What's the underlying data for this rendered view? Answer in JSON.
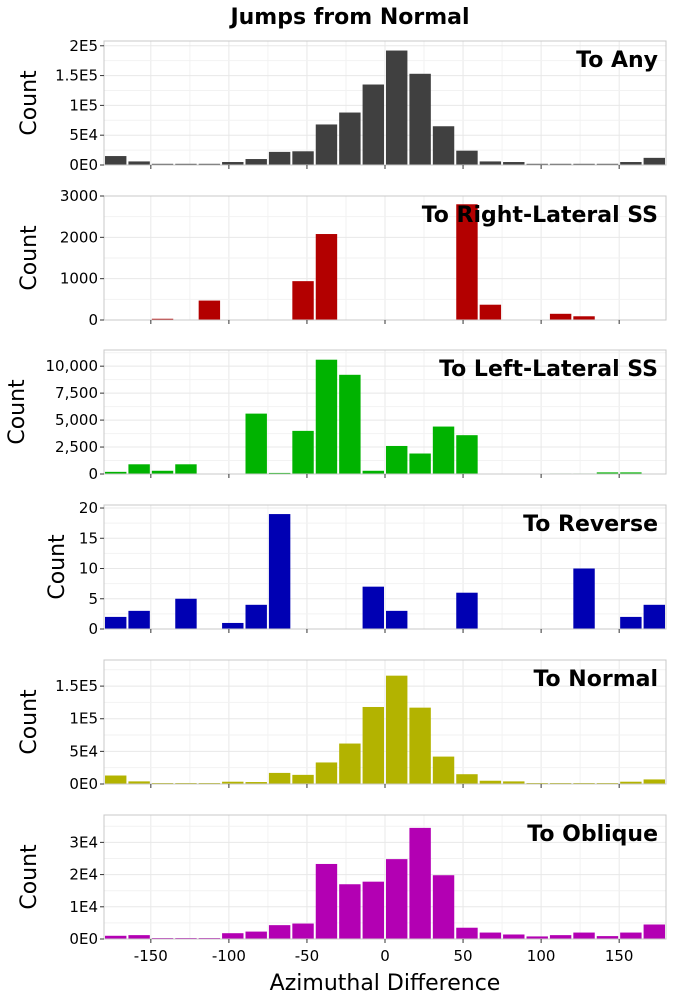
{
  "chart_data": {
    "type": "bar",
    "title": "Jumps from Normal",
    "xlabel": "Azimuthal Difference",
    "xlim": [
      -180,
      180
    ],
    "bin_width": 15,
    "x": [
      -172.5,
      -157.5,
      -142.5,
      -127.5,
      -112.5,
      -97.5,
      -82.5,
      -67.5,
      -52.5,
      -37.5,
      -22.5,
      -7.5,
      7.5,
      22.5,
      37.5,
      52.5,
      67.5,
      82.5,
      97.5,
      112.5,
      127.5,
      142.5,
      157.5,
      172.5
    ],
    "xticks": [
      -150,
      -100,
      -50,
      0,
      50,
      100,
      150
    ],
    "xtick_labels": [
      "-150",
      "-100",
      "-50",
      "0",
      "50",
      "100",
      "150"
    ],
    "grid": true,
    "panels": [
      {
        "name": "To Any",
        "color": "#404040",
        "ylabel": "Count",
        "ylim": [
          0,
          208000
        ],
        "yticks": [
          0,
          50000,
          100000,
          150000,
          200000
        ],
        "ytick_labels": [
          "0E0",
          "5E4",
          "1E5",
          "1.5E5",
          "2E5"
        ],
        "values": [
          15000,
          6000,
          2000,
          2000,
          2000,
          5000,
          10000,
          22000,
          23000,
          68000,
          88000,
          135000,
          192000,
          153000,
          65000,
          24000,
          6000,
          5000,
          2000,
          2000,
          2000,
          2000,
          5000,
          12000
        ]
      },
      {
        "name": "To Right-Lateral SS",
        "color": "#b30000",
        "ylabel": "Count",
        "ylim": [
          0,
          3000
        ],
        "yticks": [
          0,
          1000,
          2000,
          3000
        ],
        "ytick_labels": [
          "0",
          "1000",
          "2000",
          "3000"
        ],
        "values": [
          0,
          0,
          30,
          0,
          470,
          0,
          0,
          0,
          940,
          2080,
          0,
          0,
          0,
          0,
          0,
          2800,
          370,
          0,
          0,
          150,
          90,
          0,
          0,
          0
        ]
      },
      {
        "name": "To Left-Lateral SS",
        "color": "#00b300",
        "ylabel": "Count",
        "ylim": [
          0,
          11500
        ],
        "yticks": [
          0,
          2500,
          5000,
          7500,
          10000
        ],
        "ytick_labels": [
          "0",
          "2,500",
          "5,000",
          "7,500",
          "10,000"
        ],
        "values": [
          200,
          900,
          300,
          900,
          0,
          0,
          5600,
          100,
          4000,
          10600,
          9200,
          300,
          2600,
          1900,
          4400,
          3600,
          0,
          0,
          0,
          50,
          50,
          150,
          150,
          0
        ]
      },
      {
        "name": "To Reverse",
        "color": "#0000b3",
        "ylabel": "Count",
        "ylim": [
          0,
          20.5
        ],
        "yticks": [
          0,
          5,
          10,
          15,
          20
        ],
        "ytick_labels": [
          "0",
          "5",
          "10",
          "15",
          "20"
        ],
        "values": [
          2,
          3,
          0,
          5,
          0,
          1,
          4,
          19,
          0,
          0,
          0,
          7,
          3,
          0,
          0,
          6,
          0,
          0,
          0,
          0,
          10,
          0,
          2,
          4
        ]
      },
      {
        "name": "To Normal",
        "color": "#b3b300",
        "ylabel": "Count",
        "ylim": [
          0,
          190000
        ],
        "yticks": [
          0,
          50000,
          100000,
          150000
        ],
        "ytick_labels": [
          "0E0",
          "5E4",
          "1E5",
          "1.5E5"
        ],
        "values": [
          13000,
          4000,
          1500,
          1500,
          1500,
          3500,
          3000,
          17000,
          14000,
          33000,
          62000,
          118000,
          166000,
          117000,
          42000,
          15000,
          5000,
          4000,
          1500,
          1500,
          1500,
          1500,
          3500,
          7000
        ]
      },
      {
        "name": "To Oblique",
        "color": "#b300b3",
        "ylabel": "Count",
        "ylim": [
          0,
          38500
        ],
        "yticks": [
          0,
          10000,
          20000,
          30000
        ],
        "ytick_labels": [
          "0E0",
          "1E4",
          "2E4",
          "3E4"
        ],
        "values": [
          1000,
          1200,
          300,
          300,
          300,
          1800,
          2300,
          4300,
          4800,
          23300,
          17000,
          17800,
          24800,
          34500,
          19800,
          3500,
          2000,
          1400,
          800,
          1200,
          2000,
          900,
          2000,
          4500
        ]
      }
    ]
  }
}
